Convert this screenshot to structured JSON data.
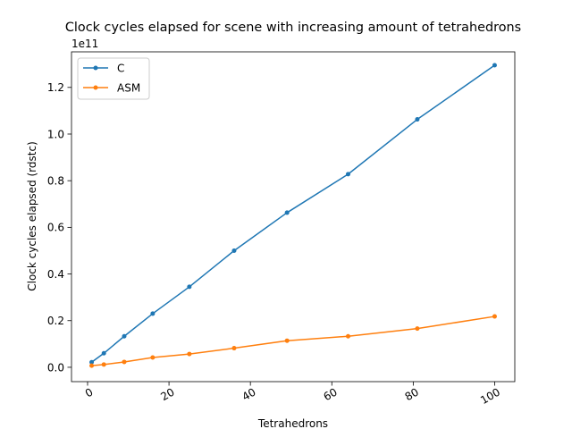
{
  "chart_data": {
    "type": "line",
    "title": "Clock cycles elapsed for scene with increasing amount of tetrahedrons",
    "xlabel": "Tetrahedrons",
    "ylabel": "Clock cycles elapsed (rdstc)",
    "y_offset_text": "1e11",
    "y_scale_factor": 100000000000,
    "xlim": [
      -3.95,
      104.95
    ],
    "ylim": [
      -0.0615,
      1.3525
    ],
    "x_ticks": [
      0,
      20,
      40,
      60,
      80,
      100
    ],
    "x_tick_labels": [
      "0",
      "20",
      "40",
      "60",
      "80",
      "100"
    ],
    "y_ticks": [
      0.0,
      0.2,
      0.4,
      0.6,
      0.8,
      1.0,
      1.2
    ],
    "y_tick_labels": [
      "0.0",
      "0.2",
      "0.4",
      "0.6",
      "0.8",
      "1.0",
      "1.2"
    ],
    "grid": false,
    "legend_position": "top-left",
    "x": [
      1,
      4,
      9,
      16,
      25,
      36,
      49,
      64,
      81,
      100
    ],
    "series": [
      {
        "name": "C",
        "color": "#1f77b4",
        "values": [
          0.022,
          0.06,
          0.133,
          0.23,
          0.345,
          0.5,
          0.663,
          0.828,
          1.063,
          1.295
        ]
      },
      {
        "name": "ASM",
        "color": "#ff7f0e",
        "values": [
          0.007,
          0.012,
          0.023,
          0.042,
          0.057,
          0.082,
          0.114,
          0.133,
          0.166,
          0.218
        ]
      }
    ]
  }
}
